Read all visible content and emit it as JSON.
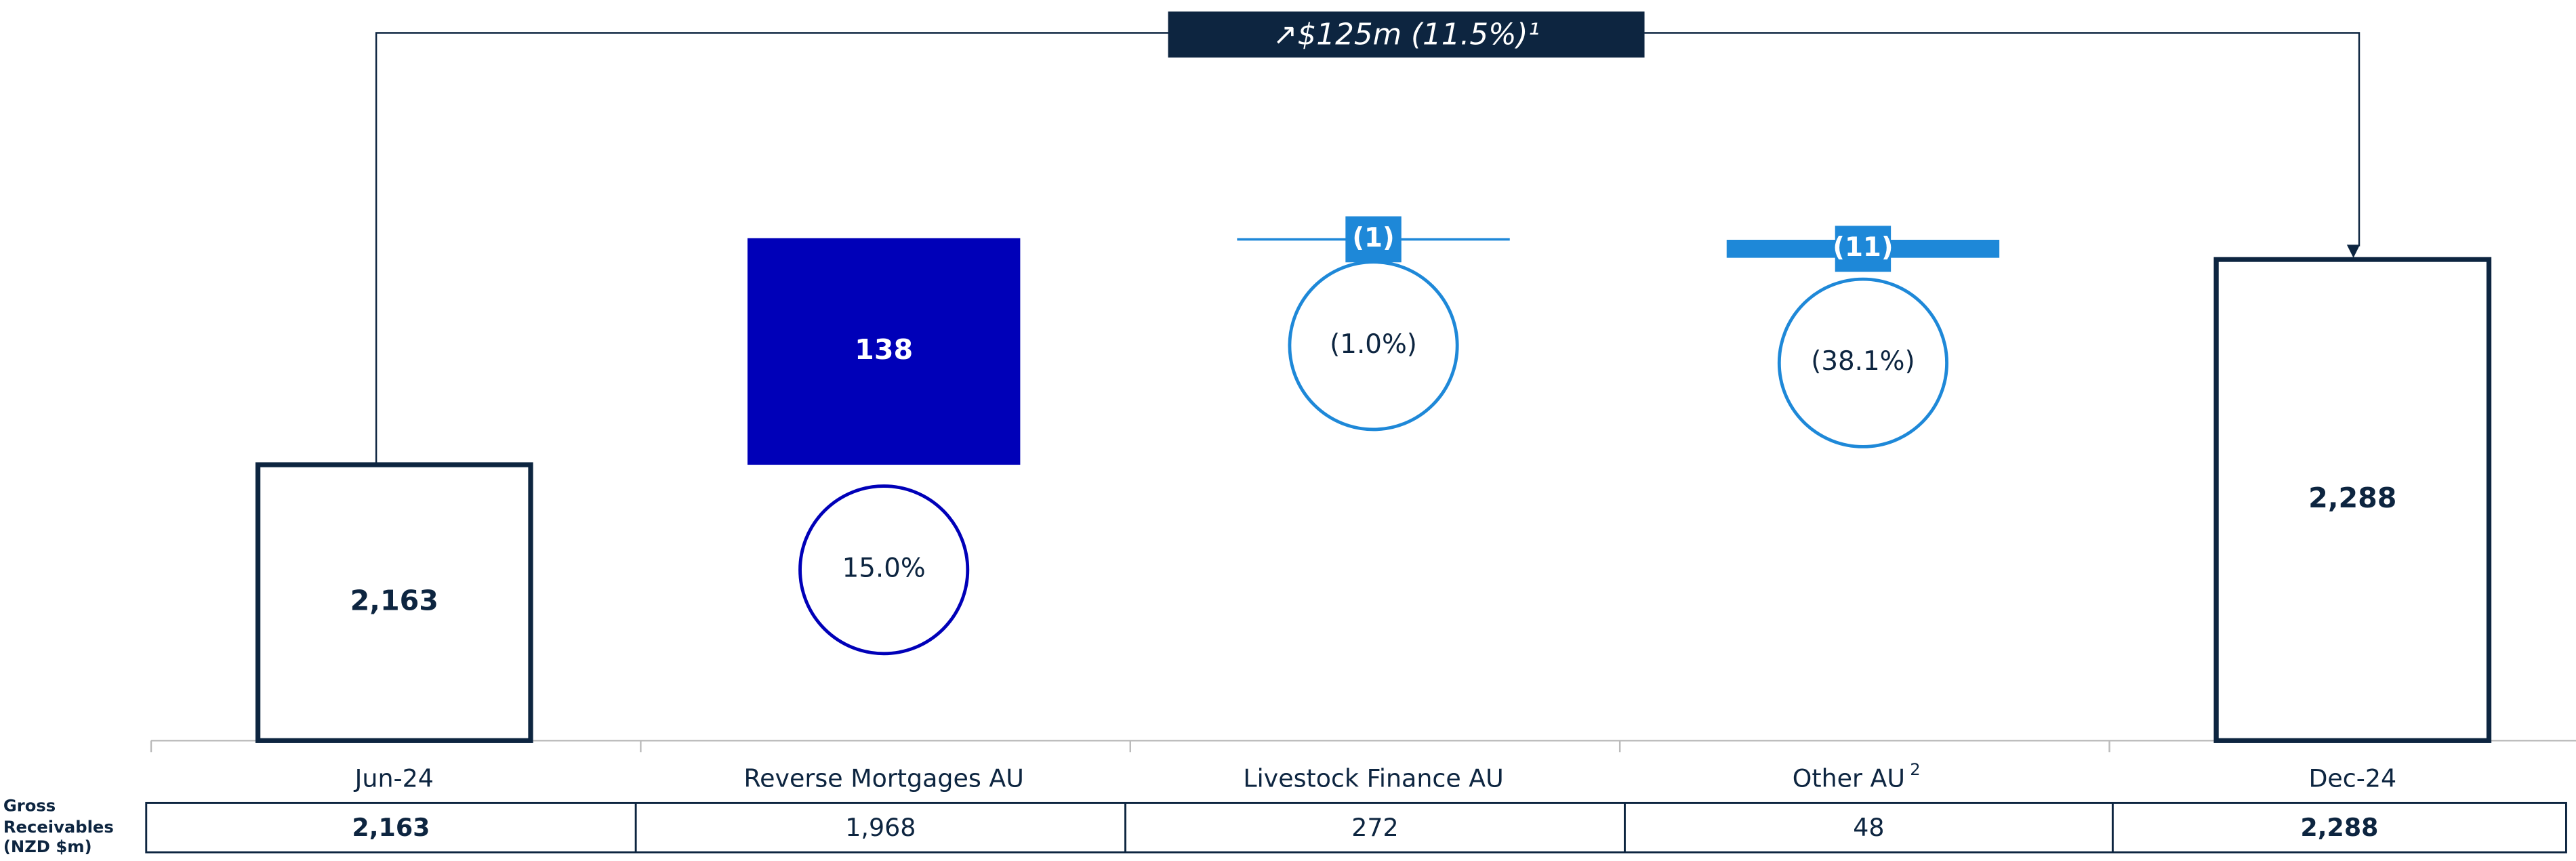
{
  "chart_data": {
    "type": "waterfall",
    "annotation": "↗$125m (11.5%)¹",
    "categories": [
      "Jun-24",
      "Reverse Mortgages AU",
      "Livestock Finance AU",
      "Other AU",
      "Dec-24"
    ],
    "category_notes": [
      null,
      null,
      null,
      "2",
      null
    ],
    "values": [
      2163,
      138,
      -1,
      -11,
      2288
    ],
    "value_labels": [
      "2,163",
      "138",
      "(1)",
      "(11)",
      "2,288"
    ],
    "kinds": [
      "total",
      "delta",
      "delta",
      "delta",
      "total"
    ],
    "growth_labels": [
      null,
      "15.0%",
      "(1.0%)",
      "(38.1%)",
      null
    ],
    "colors": [
      "#0d2540",
      "#0000b8",
      "#1e88d8",
      "#1e88d8",
      "#0d2540"
    ],
    "table": {
      "label": "Gross Receivables (NZD $m)",
      "values": [
        "2,163",
        "1,968",
        "272",
        "48",
        "2,288"
      ],
      "bold": [
        true,
        false,
        false,
        false,
        true
      ]
    }
  }
}
